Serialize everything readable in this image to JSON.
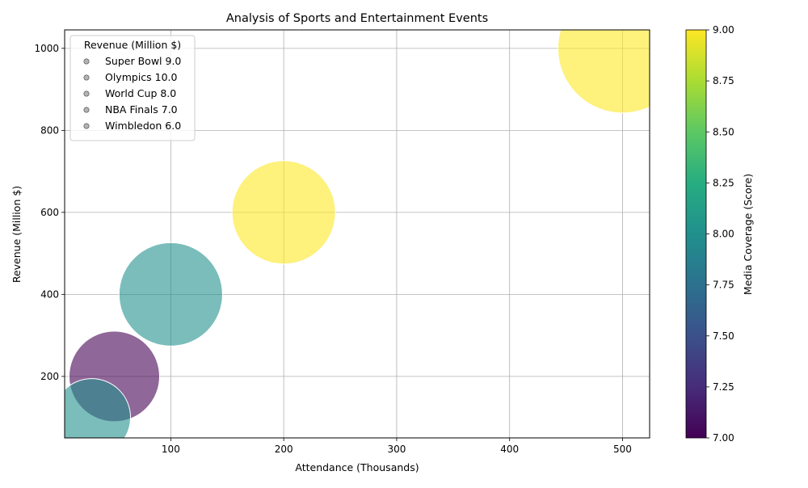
{
  "chart_data": {
    "type": "scatter",
    "title": "Analysis of Sports and Entertainment Events",
    "xlabel": "Attendance (Thousands)",
    "ylabel": "Revenue (Million $)",
    "xlim": [
      6,
      524
    ],
    "ylim": [
      50,
      1045
    ],
    "xticks": [
      100,
      200,
      300,
      400,
      500
    ],
    "yticks": [
      200,
      400,
      600,
      800,
      1000
    ],
    "grid": true,
    "colorbar": {
      "label": "Media Coverage (Score)",
      "range": [
        7.0,
        9.0
      ],
      "ticks": [
        "7.00",
        "7.25",
        "7.50",
        "7.75",
        "8.00",
        "8.25",
        "8.50",
        "8.75",
        "9.00"
      ],
      "colormap": "viridis"
    },
    "legend": {
      "title": "Revenue (Million $)",
      "placement": "top-left",
      "entries": [
        "Super Bowl 9.0",
        "Olympics 10.0",
        "World Cup 8.0",
        "NBA Finals 7.0",
        "Wimbledon 6.0"
      ]
    },
    "points": [
      {
        "x": 500,
        "y": 1000,
        "color_value": 9.0,
        "size_value": 10.0
      },
      {
        "x": 200,
        "y": 600,
        "color_value": 9.0,
        "size_value": 8.0
      },
      {
        "x": 100,
        "y": 400,
        "color_value": 8.0,
        "size_value": 8.0
      },
      {
        "x": 50,
        "y": 200,
        "color_value": 7.0,
        "size_value": 7.0
      },
      {
        "x": 30,
        "y": 100,
        "color_value": 8.0,
        "size_value": 6.0
      }
    ]
  }
}
